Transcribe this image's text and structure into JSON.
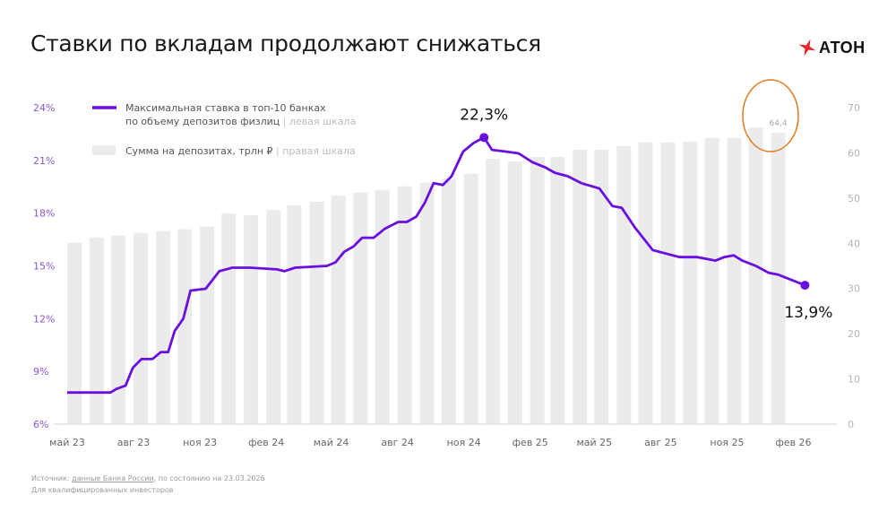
{
  "title": "Ставки по вкладам продолжают снижаться",
  "logo": {
    "text": "АТОН",
    "mark_color": "#e3262f"
  },
  "footer": {
    "source_prefix": "Источник: ",
    "source_link": "данные Банка России",
    "source_suffix": ", по состоянию на 23.03.2026",
    "note": "Для квалифицированных инвесторов"
  },
  "colors": {
    "line": "#6a0fe0",
    "bars": "#ebebeb",
    "left_axis": "#8a55d6",
    "right_axis": "#b5b5b5",
    "highlight_circle": "#e07a1f"
  },
  "chart_data": {
    "type": "bar+line",
    "legend": {
      "placement": "top-left",
      "line_label_1": "Максимальная ставка в топ-10 банках",
      "line_label_2": "по объему депозитов физлиц",
      "line_scale": "левая шкала",
      "bar_label": "Сумма на депозитах, трлн ₽",
      "bar_scale": "правая шкала"
    },
    "left_axis": {
      "range": [
        6,
        24
      ],
      "ticks": [
        "6%",
        "9%",
        "12%",
        "15%",
        "18%",
        "21%",
        "24%"
      ],
      "tick_values": [
        6,
        9,
        12,
        15,
        18,
        21,
        24
      ]
    },
    "right_axis": {
      "range": [
        0,
        70
      ],
      "ticks": [
        "0",
        "10",
        "20",
        "30",
        "40",
        "50",
        "60",
        "70"
      ],
      "tick_values": [
        0,
        10,
        20,
        30,
        40,
        50,
        60,
        70
      ]
    },
    "x_ticks": [
      {
        "label": "май 23",
        "date": "2023-05-01"
      },
      {
        "label": "авг 23",
        "date": "2023-08-01"
      },
      {
        "label": "ноя 23",
        "date": "2023-11-01"
      },
      {
        "label": "фев 24",
        "date": "2024-02-01"
      },
      {
        "label": "май 24",
        "date": "2024-05-01"
      },
      {
        "label": "авг 24",
        "date": "2024-08-01"
      },
      {
        "label": "ноя 24",
        "date": "2024-11-01"
      },
      {
        "label": "фев 25",
        "date": "2025-02-01"
      },
      {
        "label": "май 25",
        "date": "2025-05-01"
      },
      {
        "label": "авг 25",
        "date": "2025-08-01"
      },
      {
        "label": "ноя 25",
        "date": "2025-11-01"
      },
      {
        "label": "фев 26",
        "date": "2026-02-01"
      }
    ],
    "bars": {
      "months": [
        "2023-05",
        "2023-06",
        "2023-07",
        "2023-08",
        "2023-09",
        "2023-10",
        "2023-11",
        "2023-12",
        "2024-01",
        "2024-02",
        "2024-03",
        "2024-04",
        "2024-05",
        "2024-06",
        "2024-07",
        "2024-08",
        "2024-09",
        "2024-10",
        "2024-11",
        "2024-12",
        "2025-01",
        "2025-02",
        "2025-03",
        "2025-04",
        "2025-05",
        "2025-06",
        "2025-07",
        "2025-08",
        "2025-09",
        "2025-10",
        "2025-11",
        "2025-12",
        "2026-01"
      ],
      "values": [
        40.1,
        41.3,
        41.7,
        42.3,
        42.7,
        43.1,
        43.7,
        46.6,
        46.2,
        47.4,
        48.4,
        49.2,
        50.6,
        51.2,
        51.8,
        52.6,
        53.4,
        54.2,
        55.4,
        58.7,
        58.1,
        59.1,
        59.1,
        60.7,
        60.7,
        61.5,
        62.3,
        62.3,
        62.5,
        63.3,
        63.3,
        65.6,
        64.4
      ],
      "labeled_value": "64,4"
    },
    "line": {
      "points": [
        [
          "2023-05-01",
          7.8
        ],
        [
          "2023-06-30",
          7.8
        ],
        [
          "2023-07-08",
          8.0
        ],
        [
          "2023-07-21",
          8.2
        ],
        [
          "2023-07-31",
          9.2
        ],
        [
          "2023-08-12",
          9.7
        ],
        [
          "2023-08-27",
          9.7
        ],
        [
          "2023-09-08",
          10.1
        ],
        [
          "2023-09-18",
          10.1
        ],
        [
          "2023-09-27",
          11.3
        ],
        [
          "2023-10-09",
          12.0
        ],
        [
          "2023-10-19",
          13.6
        ],
        [
          "2023-11-09",
          13.7
        ],
        [
          "2023-11-28",
          14.7
        ],
        [
          "2023-12-16",
          14.9
        ],
        [
          "2024-01-10",
          14.9
        ],
        [
          "2024-02-16",
          14.8
        ],
        [
          "2024-02-26",
          14.7
        ],
        [
          "2024-03-12",
          14.9
        ],
        [
          "2024-04-25",
          15.0
        ],
        [
          "2024-05-07",
          15.2
        ],
        [
          "2024-05-19",
          15.8
        ],
        [
          "2024-06-01",
          16.1
        ],
        [
          "2024-06-13",
          16.6
        ],
        [
          "2024-06-29",
          16.6
        ],
        [
          "2024-07-14",
          17.1
        ],
        [
          "2024-08-02",
          17.5
        ],
        [
          "2024-08-14",
          17.5
        ],
        [
          "2024-08-27",
          17.8
        ],
        [
          "2024-09-08",
          18.6
        ],
        [
          "2024-09-20",
          19.7
        ],
        [
          "2024-10-03",
          19.6
        ],
        [
          "2024-10-15",
          20.1
        ],
        [
          "2024-10-31",
          21.5
        ],
        [
          "2024-11-15",
          22.0
        ],
        [
          "2024-11-29",
          22.3
        ],
        [
          "2024-12-10",
          21.6
        ],
        [
          "2024-12-29",
          21.5
        ],
        [
          "2025-01-16",
          21.4
        ],
        [
          "2025-02-04",
          20.9
        ],
        [
          "2025-02-22",
          20.6
        ],
        [
          "2025-03-07",
          20.3
        ],
        [
          "2025-03-25",
          20.1
        ],
        [
          "2025-04-13",
          19.7
        ],
        [
          "2025-05-08",
          19.4
        ],
        [
          "2025-05-26",
          18.4
        ],
        [
          "2025-06-08",
          18.3
        ],
        [
          "2025-06-26",
          17.2
        ],
        [
          "2025-07-21",
          15.9
        ],
        [
          "2025-08-27",
          15.5
        ],
        [
          "2025-09-21",
          15.5
        ],
        [
          "2025-10-16",
          15.3
        ],
        [
          "2025-10-28",
          15.5
        ],
        [
          "2025-11-10",
          15.6
        ],
        [
          "2025-11-22",
          15.3
        ],
        [
          "2025-12-11",
          15.0
        ],
        [
          "2025-12-29",
          14.6
        ],
        [
          "2026-01-11",
          14.5
        ],
        [
          "2026-02-17",
          13.9
        ]
      ],
      "annotations": [
        {
          "date": "2024-11-29",
          "value": 22.3,
          "label": "22,3%"
        },
        {
          "date": "2026-02-17",
          "value": 13.9,
          "label": "13,9%"
        }
      ]
    }
  }
}
